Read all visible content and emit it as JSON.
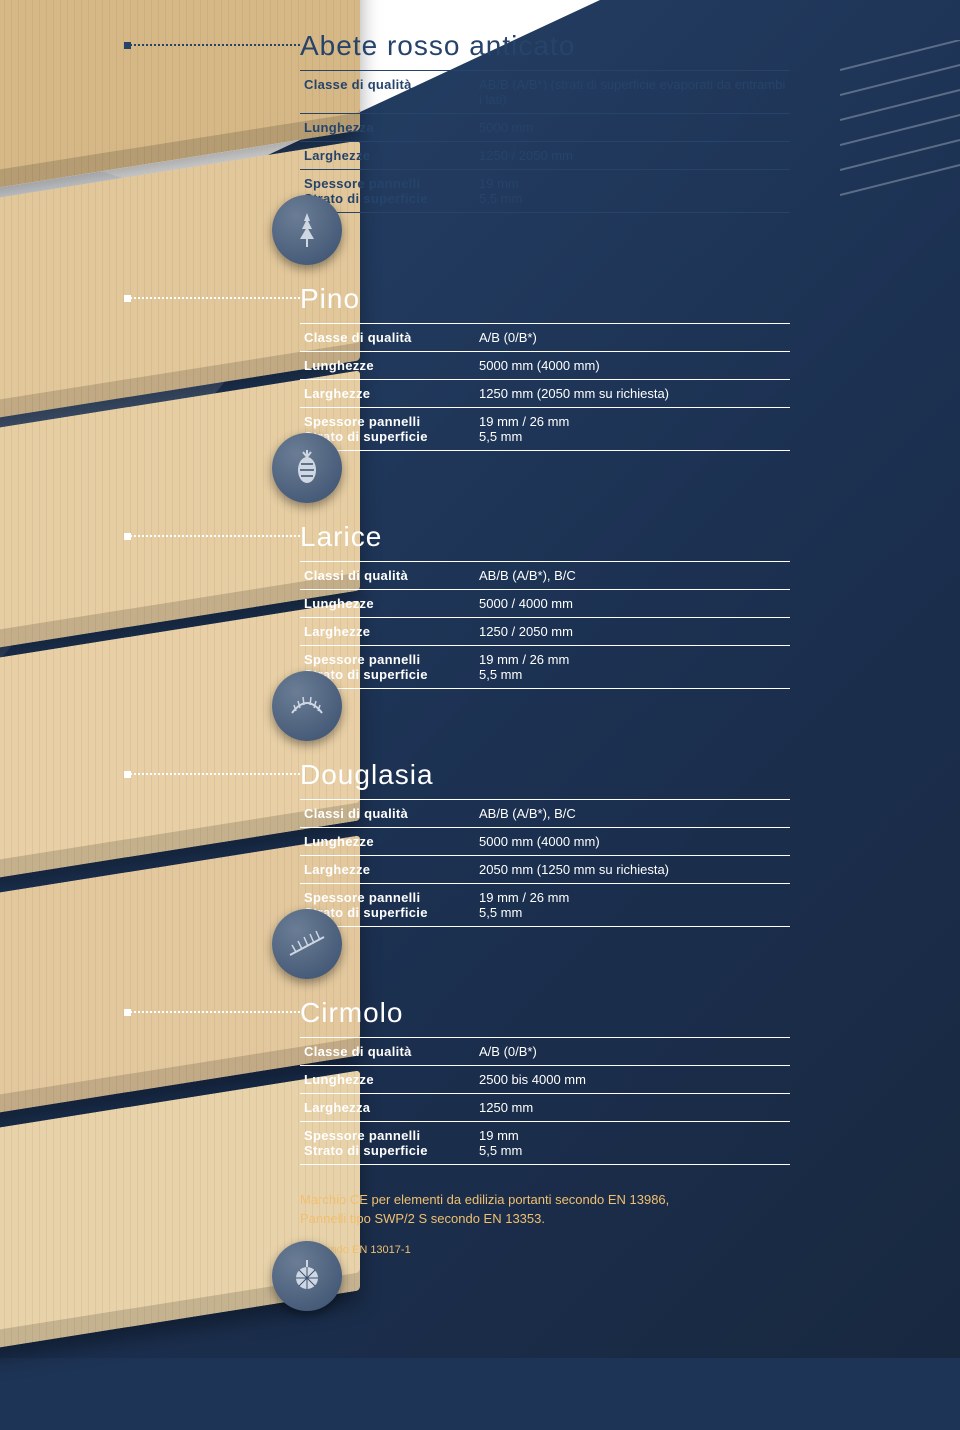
{
  "colors": {
    "page_bg": "#1e3456",
    "dark_text": "#26436a",
    "light_text": "#ffffff",
    "footnote": "#f0c070",
    "board_tones": [
      "#d6b886",
      "#e2c79a",
      "#e6cda2",
      "#e8cfa5",
      "#e3c89d",
      "#e8d2a9"
    ]
  },
  "products": [
    {
      "title": "Abete rosso anticato",
      "dark": true,
      "icon": "conifer-branch-icon",
      "rows": [
        {
          "label": "Classe di qualità",
          "value": "AB/B (A/B*) (strati di superficie evaporati da entrambi i lati)"
        },
        {
          "label": "Lunghezza",
          "value": "5000 mm"
        },
        {
          "label": "Larghezze",
          "value": "1250 / 2050 mm"
        },
        {
          "label": "Spessore pannelli\nStrato di superficie",
          "value": "19 mm\n5,5 mm"
        }
      ]
    },
    {
      "title": "Pino",
      "dark": false,
      "icon": "pinecone-icon",
      "rows": [
        {
          "label": "Classe di qualità",
          "value": "A/B (0/B*)"
        },
        {
          "label": "Lunghezze",
          "value": "5000 mm (4000 mm)"
        },
        {
          "label": "Larghezze",
          "value": "1250 mm (2050 mm su richiesta)"
        },
        {
          "label": "Spessore pannelli\nStrato di superficie",
          "value": "19 mm / 26 mm\n5,5 mm"
        }
      ]
    },
    {
      "title": "Larice",
      "dark": false,
      "icon": "larch-branch-icon",
      "rows": [
        {
          "label": "Classi di qualità",
          "value": "AB/B (A/B*), B/C"
        },
        {
          "label": "Lunghezze",
          "value": "5000 / 4000 mm"
        },
        {
          "label": "Larghezze",
          "value": "1250 / 2050 mm"
        },
        {
          "label": "Spessore pannelli\nStrato di superficie",
          "value": "19 mm / 26 mm\n5,5 mm"
        }
      ]
    },
    {
      "title": "Douglasia",
      "dark": false,
      "icon": "fir-branch-icon",
      "rows": [
        {
          "label": "Classi di qualità",
          "value": "AB/B (A/B*), B/C"
        },
        {
          "label": "Lunghezze",
          "value": "5000 mm (4000 mm)"
        },
        {
          "label": "Larghezze",
          "value": "2050 mm (1250 mm su richiesta)"
        },
        {
          "label": "Spessore pannelli\nStrato di superficie",
          "value": "19 mm / 26 mm\n5,5 mm"
        }
      ]
    },
    {
      "title": "Cirmolo",
      "dark": false,
      "icon": "pom-icon",
      "rows": [
        {
          "label": "Classe di qualità",
          "value": "A/B (0/B*)"
        },
        {
          "label": "Lunghezze",
          "value": "2500 bis 4000 mm"
        },
        {
          "label": "Larghezza",
          "value": "1250 mm"
        },
        {
          "label": "Spessore pannelli\nStrato di superficie",
          "value": "19 mm\n5,5 mm"
        }
      ]
    }
  ],
  "footnote_line1": "Marchio CE per elementi da edilizia portanti secondo EN 13986,",
  "footnote_line2": "Pannelli tipo SWP/2 S secondo EN 13353.",
  "footnote_sub": "* secondo EN 13017-1"
}
